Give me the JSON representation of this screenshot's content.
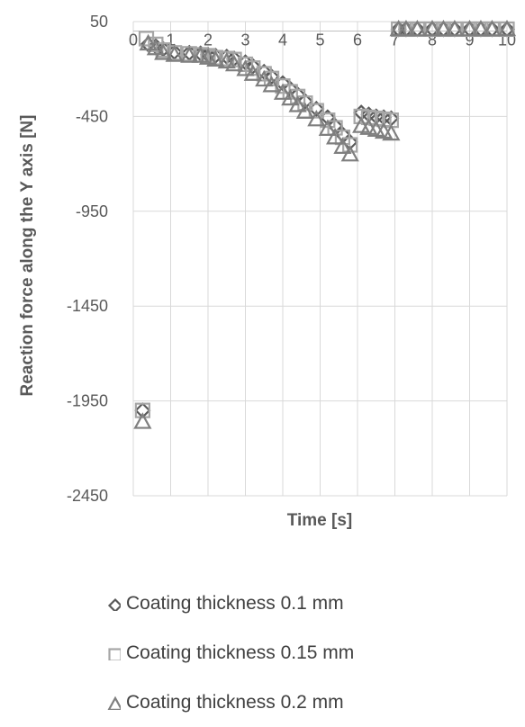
{
  "chart_data": {
    "type": "scatter",
    "xlabel": "Time [s]",
    "ylabel": "Reaction force along the Y axis [N]",
    "xlim": [
      0,
      10
    ],
    "ylim": [
      -2450,
      50
    ],
    "x_ticks": [
      0,
      1,
      2,
      3,
      4,
      5,
      6,
      7,
      8,
      9,
      10
    ],
    "y_ticks": [
      50,
      -450,
      -950,
      -1450,
      -1950,
      -2450
    ],
    "grid": true,
    "legend_position": "bottom",
    "series": [
      {
        "name": "Coating thickness 0.1 mm",
        "marker": "diamond",
        "color": "#595959",
        "points": [
          [
            0.25,
            -2000
          ],
          [
            0.4,
            -70
          ],
          [
            0.6,
            -80
          ],
          [
            0.8,
            -95
          ],
          [
            1.1,
            -110
          ],
          [
            1.5,
            -115
          ],
          [
            1.8,
            -118
          ],
          [
            2.0,
            -125
          ],
          [
            2.2,
            -130
          ],
          [
            2.5,
            -135
          ],
          [
            2.7,
            -145
          ],
          [
            3.0,
            -165
          ],
          [
            3.2,
            -185
          ],
          [
            3.5,
            -215
          ],
          [
            3.7,
            -240
          ],
          [
            4.0,
            -275
          ],
          [
            4.2,
            -305
          ],
          [
            4.4,
            -335
          ],
          [
            4.6,
            -370
          ],
          [
            4.9,
            -410
          ],
          [
            5.2,
            -455
          ],
          [
            5.4,
            -500
          ],
          [
            5.6,
            -545
          ],
          [
            5.8,
            -585
          ],
          [
            6.1,
            -430
          ],
          [
            6.3,
            -440
          ],
          [
            6.5,
            -450
          ],
          [
            6.7,
            -455
          ],
          [
            6.9,
            -460
          ],
          [
            7.1,
            10
          ],
          [
            7.3,
            10
          ],
          [
            7.6,
            10
          ],
          [
            8.0,
            10
          ],
          [
            8.3,
            10
          ],
          [
            8.6,
            10
          ],
          [
            9.0,
            10
          ],
          [
            9.3,
            10
          ],
          [
            9.6,
            10
          ],
          [
            10.0,
            10
          ]
        ]
      },
      {
        "name": "Coating thickness 0.15 mm",
        "marker": "square",
        "color": "#a6a6a6",
        "points": [
          [
            0.25,
            -2000
          ],
          [
            0.35,
            -40
          ],
          [
            0.6,
            -70
          ],
          [
            0.8,
            -100
          ],
          [
            1.1,
            -115
          ],
          [
            1.5,
            -120
          ],
          [
            1.8,
            -125
          ],
          [
            2.0,
            -130
          ],
          [
            2.2,
            -140
          ],
          [
            2.5,
            -145
          ],
          [
            2.7,
            -150
          ],
          [
            3.0,
            -175
          ],
          [
            3.2,
            -195
          ],
          [
            3.5,
            -225
          ],
          [
            3.7,
            -250
          ],
          [
            4.0,
            -290
          ],
          [
            4.2,
            -320
          ],
          [
            4.4,
            -345
          ],
          [
            4.6,
            -380
          ],
          [
            4.9,
            -420
          ],
          [
            5.2,
            -470
          ],
          [
            5.4,
            -510
          ],
          [
            5.6,
            -560
          ],
          [
            5.8,
            -600
          ],
          [
            6.1,
            -450
          ],
          [
            6.3,
            -455
          ],
          [
            6.5,
            -460
          ],
          [
            6.7,
            -465
          ],
          [
            6.9,
            -470
          ],
          [
            7.1,
            10
          ],
          [
            7.3,
            10
          ],
          [
            7.6,
            10
          ],
          [
            8.0,
            10
          ],
          [
            8.3,
            10
          ],
          [
            8.6,
            10
          ],
          [
            9.0,
            10
          ],
          [
            9.3,
            10
          ],
          [
            9.6,
            10
          ],
          [
            10.0,
            10
          ]
        ]
      },
      {
        "name": "Coating thickness 0.2 mm",
        "marker": "triangle",
        "color": "#7f7f7f",
        "points": [
          [
            0.25,
            -2060
          ],
          [
            0.4,
            -65
          ],
          [
            0.6,
            -90
          ],
          [
            0.8,
            -115
          ],
          [
            1.1,
            -125
          ],
          [
            1.5,
            -130
          ],
          [
            1.8,
            -130
          ],
          [
            2.0,
            -140
          ],
          [
            2.2,
            -150
          ],
          [
            2.5,
            -160
          ],
          [
            2.7,
            -175
          ],
          [
            3.0,
            -200
          ],
          [
            3.2,
            -225
          ],
          [
            3.5,
            -255
          ],
          [
            3.7,
            -285
          ],
          [
            4.0,
            -325
          ],
          [
            4.2,
            -355
          ],
          [
            4.4,
            -390
          ],
          [
            4.6,
            -425
          ],
          [
            4.9,
            -465
          ],
          [
            5.2,
            -515
          ],
          [
            5.4,
            -560
          ],
          [
            5.6,
            -610
          ],
          [
            5.8,
            -650
          ],
          [
            6.1,
            -500
          ],
          [
            6.3,
            -510
          ],
          [
            6.5,
            -520
          ],
          [
            6.7,
            -530
          ],
          [
            6.9,
            -540
          ],
          [
            7.1,
            10
          ],
          [
            7.3,
            10
          ],
          [
            7.6,
            10
          ],
          [
            8.0,
            10
          ],
          [
            8.3,
            10
          ],
          [
            8.6,
            10
          ],
          [
            9.0,
            10
          ],
          [
            9.3,
            10
          ],
          [
            9.6,
            10
          ],
          [
            10.0,
            10
          ]
        ]
      }
    ]
  }
}
